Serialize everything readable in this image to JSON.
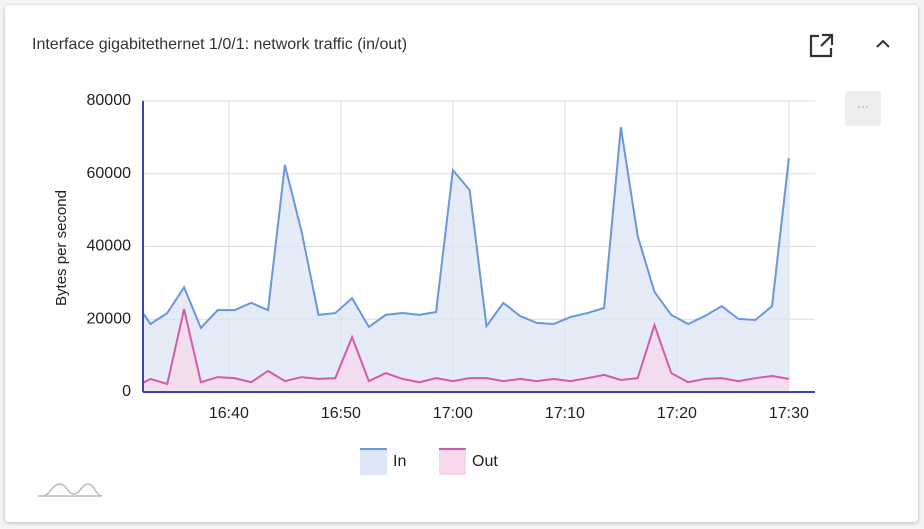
{
  "chart_data": {
    "type": "area",
    "title": "Interface gigabitethernet 1/0/1: network traffic (in/out)",
    "y_label": "Bytes per second",
    "x": [
      "16:32:20",
      "16:33:00",
      "16:34:30",
      "16:36:00",
      "16:37:30",
      "16:39:00",
      "16:40:30",
      "16:42:00",
      "16:43:30",
      "16:45:00",
      "16:46:30",
      "16:48:00",
      "16:49:30",
      "16:51:00",
      "16:52:30",
      "16:54:00",
      "16:55:30",
      "16:57:00",
      "16:58:30",
      "17:00:00",
      "17:01:30",
      "17:03:00",
      "17:04:30",
      "17:06:00",
      "17:07:30",
      "17:09:00",
      "17:10:30",
      "17:12:00",
      "17:13:30",
      "17:15:00",
      "17:16:30",
      "17:18:00",
      "17:19:30",
      "17:21:00",
      "17:22:30",
      "17:24:00",
      "17:25:30",
      "17:27:00",
      "17:28:30",
      "17:30:00"
    ],
    "series": [
      {
        "name": "In",
        "color": "#6a96dc",
        "fill": "#dce6f6",
        "values": [
          21700,
          18700,
          21700,
          28800,
          17600,
          22500,
          22500,
          24500,
          22500,
          62400,
          44000,
          21200,
          21700,
          25800,
          17900,
          21200,
          21700,
          21200,
          22000,
          61000,
          55500,
          18100,
          24500,
          20900,
          19000,
          18700,
          20600,
          21700,
          23100,
          72800,
          42900,
          27500,
          21200,
          18700,
          20900,
          23600,
          20100,
          19800,
          23600,
          64300
        ]
      },
      {
        "name": "Out",
        "color": "#d45aa8",
        "fill": "#f6d8ec",
        "values": [
          2500,
          3600,
          2200,
          22800,
          2700,
          4100,
          3800,
          2700,
          5800,
          3000,
          4100,
          3600,
          3800,
          15100,
          3000,
          5200,
          3600,
          2700,
          3800,
          3000,
          3800,
          3800,
          3000,
          3600,
          3000,
          3600,
          3000,
          3800,
          4700,
          3300,
          3800,
          18400,
          5200,
          2700,
          3600,
          3800,
          3000,
          3800,
          4400,
          3600
        ]
      }
    ],
    "xlim": [
      "16:32:20",
      "17:32:20"
    ],
    "xticks": [
      "16:40",
      "16:50",
      "17:00",
      "17:10",
      "17:20",
      "17:30"
    ],
    "ylim": [
      0,
      80000
    ],
    "yticks": [
      0,
      20000,
      40000,
      60000,
      80000
    ],
    "grid": true,
    "legend": "bottom"
  }
}
